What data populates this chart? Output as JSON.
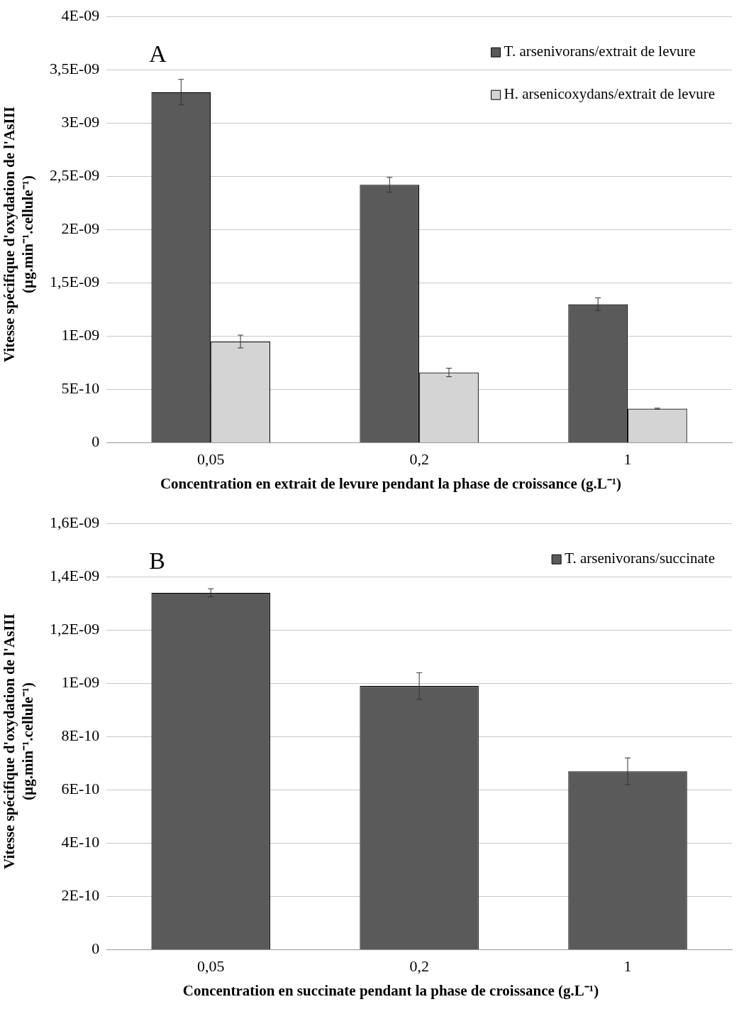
{
  "chart_data": [
    {
      "type": "bar",
      "annotations": [
        "A"
      ],
      "xlabel": "Concentration en extrait de levure pendant la phase de croissance (g.L⁻¹)",
      "ylabel": "Vitesse spécifique d'oxydation de l'AsIII\n(µg.min⁻¹.cellule⁻¹)",
      "categories": [
        "0,05",
        "0,2",
        "1"
      ],
      "series": [
        {
          "name": "T. arsenivorans/extrait de levure",
          "color": "#5a5a5a",
          "values": [
            3.29e-09,
            2.42e-09,
            1.3e-09
          ],
          "errors": [
            1.2e-10,
            7e-11,
            6e-11
          ]
        },
        {
          "name": "H. arsenicoxydans/extrait de levure",
          "color": "#d4d4d4",
          "values": [
            9.5e-10,
            6.6e-10,
            3.2e-10
          ],
          "errors": [
            6e-11,
            4e-11,
            5e-12
          ]
        }
      ],
      "ylim": [
        0,
        4e-09
      ],
      "yticks": [
        0,
        {
          "value": 5e-10,
          "label": "5E-10"
        },
        {
          "value": 1e-09,
          "label": "1E-09"
        },
        {
          "value": 1.5e-09,
          "label": "1,5E-09"
        },
        {
          "value": 2e-09,
          "label": "2E-09"
        },
        {
          "value": 2.5e-09,
          "label": "2,5E-09"
        },
        {
          "value": 3e-09,
          "label": "3E-09"
        },
        {
          "value": 3.5e-09,
          "label": "3,5E-09"
        },
        {
          "value": 4e-09,
          "label": "4E-09"
        }
      ],
      "grid": "y",
      "legend": "top right"
    },
    {
      "type": "bar",
      "annotations": [
        "B"
      ],
      "xlabel": "Concentration en succinate pendant la phase de croissance (g.L⁻¹)",
      "ylabel": "Vitesse spécifique d'oxydation de l'AsIII\n(µg.min⁻¹.cellule⁻¹)",
      "categories": [
        "0,05",
        "0,2",
        "1"
      ],
      "series": [
        {
          "name": "T. arsenivorans/succinate",
          "color": "#5a5a5a",
          "values": [
            1.34e-09,
            9.9e-10,
            6.7e-10
          ],
          "errors": [
            1.5e-11,
            5e-11,
            5e-11
          ]
        }
      ],
      "ylim": [
        0,
        1.6e-09
      ],
      "yticks": [
        0,
        {
          "value": 2e-10,
          "label": "2E-10"
        },
        {
          "value": 4e-10,
          "label": "4E-10"
        },
        {
          "value": 6e-10,
          "label": "6E-10"
        },
        {
          "value": 8e-10,
          "label": "8E-10"
        },
        {
          "value": 1e-09,
          "label": "1E-09"
        },
        {
          "value": 1.2e-09,
          "label": "1,2E-09"
        },
        {
          "value": 1.4e-09,
          "label": "1,4E-09"
        },
        {
          "value": 1.6e-09,
          "label": "1,6E-09"
        }
      ],
      "grid": "y",
      "legend": "top right"
    }
  ]
}
